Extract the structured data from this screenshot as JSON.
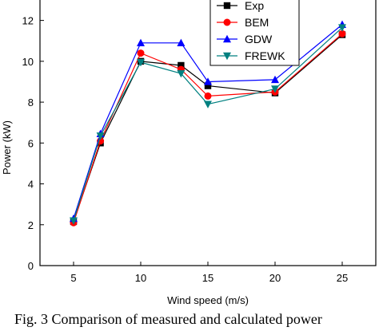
{
  "chart_data": {
    "type": "line",
    "xlabel": "Wind speed (m/s)",
    "ylabel": "Power (kW)",
    "xlim": [
      2.5,
      27.5
    ],
    "ylim": [
      0,
      13
    ],
    "xticks": [
      5,
      10,
      15,
      20,
      25
    ],
    "yticks": [
      0,
      2,
      4,
      6,
      8,
      10,
      12
    ],
    "x": [
      5,
      7,
      10,
      13,
      15,
      20,
      25
    ],
    "legend_position": "top-right",
    "series": [
      {
        "name": "Exp",
        "values": [
          2.15,
          6.0,
          10.0,
          9.8,
          8.8,
          8.45,
          11.3
        ],
        "color": "#000000",
        "marker": "square"
      },
      {
        "name": "BEM",
        "values": [
          2.1,
          6.1,
          10.4,
          9.6,
          8.3,
          8.5,
          11.35
        ],
        "color": "#ff0000",
        "marker": "circle"
      },
      {
        "name": "GDW",
        "values": [
          2.3,
          6.45,
          10.9,
          10.9,
          9.0,
          9.1,
          11.8
        ],
        "color": "#0000ff",
        "marker": "triangle-up"
      },
      {
        "name": "FREWK",
        "values": [
          2.2,
          6.35,
          9.95,
          9.4,
          7.9,
          8.65,
          11.65
        ],
        "color": "#008080",
        "marker": "triangle-down"
      }
    ]
  },
  "caption": "Fig. 3 Comparison of measured and calculated power"
}
